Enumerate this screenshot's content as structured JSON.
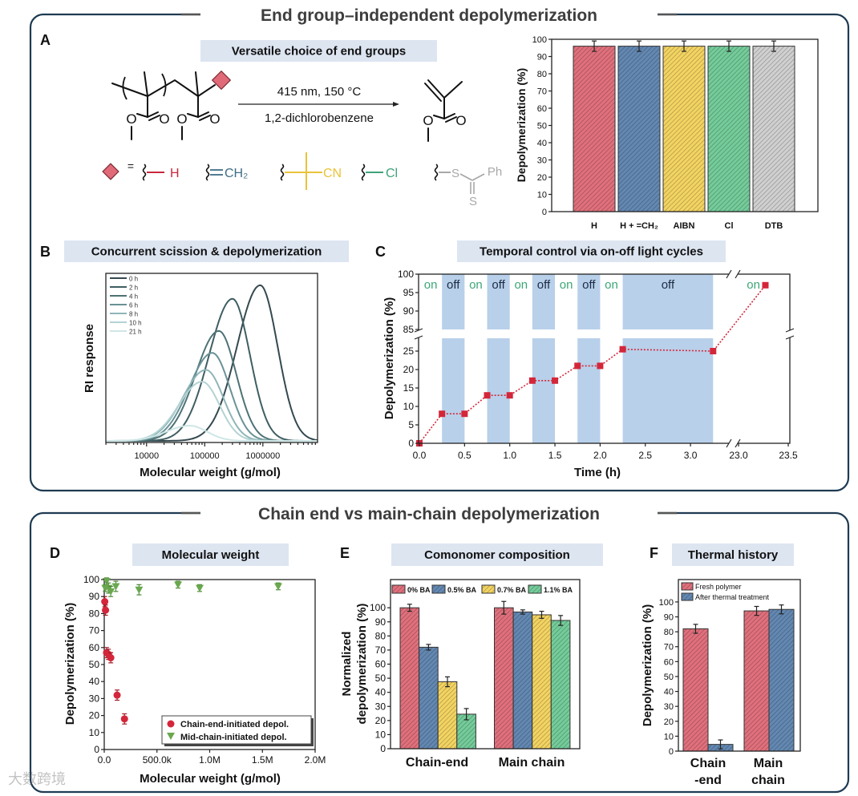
{
  "sections": {
    "top_title": "End group–independent depolymerization",
    "bottom_title": "Chain end vs main-chain depolymerization"
  },
  "panels": {
    "A": {
      "label": "A",
      "title": "Versatile choice of end groups",
      "conditions_top": "415 nm, 150 °C",
      "conditions_bottom": "1,2-dichlorobenzene",
      "atom_O": "O",
      "equals": "=",
      "end_groups": {
        "h": "H",
        "vinyl": "CH₂",
        "aibn": "CN",
        "cl": "Cl",
        "dtb_s1": "S",
        "dtb_ph": "Ph",
        "dtb_s2": "S"
      }
    },
    "B": {
      "label": "B",
      "title": "Concurrent scission & depolymerization"
    },
    "C": {
      "label": "C",
      "title": "Temporal control via on-off light cycles"
    },
    "D": {
      "label": "D",
      "title": "Molecular weight"
    },
    "E": {
      "label": "E",
      "title": "Comonomer composition"
    },
    "F": {
      "label": "F",
      "title": "Thermal history"
    }
  },
  "watermark": "大数跨境",
  "colors": {
    "frame": "#1f3b52",
    "title_box": "#dde5f1",
    "red": "#e0707c",
    "blue": "#6388b2",
    "yellow": "#f3d462",
    "green": "#74cc9a",
    "gray": "#d0d0d0",
    "off_band": "#b8d0ea",
    "on_text": "#3aa776",
    "off_text": "#1c2b45",
    "point_red": "#d4263a",
    "point_green": "#6aa84f",
    "end_h": "#c8283c",
    "end_vinyl": "#3e6e86",
    "end_aibn": "#eac33a",
    "end_cl": "#3ea37a",
    "end_dtb": "#a8a8a8"
  },
  "chart_data": [
    {
      "type": "bar",
      "panel": "A",
      "categories": [
        "H",
        "H + =CH₂",
        "AIBN",
        "Cl",
        "DTB"
      ],
      "values": [
        96,
        96,
        96,
        96,
        96
      ],
      "errors": [
        3,
        3,
        3,
        3,
        3
      ],
      "ylabel": "Depolymerization (%)",
      "xlabel": "",
      "ylim": [
        0,
        100
      ],
      "yticks": [
        0,
        10,
        20,
        30,
        40,
        50,
        60,
        70,
        80,
        90,
        100
      ]
    },
    {
      "type": "line",
      "panel": "B",
      "title": "Concurrent scission & depolymerization",
      "xlabel": "Molecular weight (g/mol)",
      "ylabel": "RI response",
      "xscale": "log",
      "xticks": [
        10000,
        100000,
        1000000
      ],
      "xtick_labels": [
        "10000",
        "100000",
        "1000000"
      ],
      "legend_position": "top-left",
      "series": [
        {
          "name": "0 h",
          "peak_mw": 900000,
          "relative_height": 0.92
        },
        {
          "name": "2 h",
          "peak_mw": 300000,
          "relative_height": 0.84
        },
        {
          "name": "4 h",
          "peak_mw": 175000,
          "relative_height": 0.65
        },
        {
          "name": "6 h",
          "peak_mw": 135000,
          "relative_height": 0.52
        },
        {
          "name": "8 h",
          "peak_mw": 105000,
          "relative_height": 0.42
        },
        {
          "name": "10 h",
          "peak_mw": 90000,
          "relative_height": 0.35
        },
        {
          "name": "21 h",
          "peak_mw": 55000,
          "relative_height": 0.09
        }
      ]
    },
    {
      "type": "line",
      "panel": "C",
      "title": "Temporal control via on-off light cycles",
      "xlabel": "Time (h)",
      "ylabel": "Depolymerization (%)",
      "x": [
        0,
        0.25,
        0.5,
        0.75,
        1.0,
        1.25,
        1.5,
        1.75,
        2.0,
        2.25,
        3.25,
        23.27
      ],
      "y": [
        0,
        8,
        8,
        13,
        13,
        17,
        17,
        21,
        21,
        25.5,
        25,
        97
      ],
      "light_periods": [
        {
          "state": "on",
          "start": 0,
          "end": 0.25
        },
        {
          "state": "off",
          "start": 0.25,
          "end": 0.5
        },
        {
          "state": "on",
          "start": 0.5,
          "end": 0.75
        },
        {
          "state": "off",
          "start": 0.75,
          "end": 1.0
        },
        {
          "state": "on",
          "start": 1.0,
          "end": 1.25
        },
        {
          "state": "off",
          "start": 1.25,
          "end": 1.5
        },
        {
          "state": "on",
          "start": 1.5,
          "end": 1.75
        },
        {
          "state": "off",
          "start": 1.75,
          "end": 2.0
        },
        {
          "state": "on",
          "start": 2.0,
          "end": 2.25
        },
        {
          "state": "off",
          "start": 2.25,
          "end": 3.25
        },
        {
          "state": "on",
          "start": 23.0,
          "end": 23.3
        }
      ],
      "xticks": [
        0,
        0.5,
        1.0,
        1.5,
        2.0,
        2.5,
        3.0,
        23.0,
        23.5
      ],
      "xtick_labels": [
        "0.0",
        "0.5",
        "1.0",
        "1.5",
        "2.0",
        "2.5",
        "3.0",
        "23.0",
        "23.5"
      ],
      "yticks": [
        0,
        5,
        10,
        15,
        20,
        25,
        85,
        90,
        95,
        100
      ],
      "x_break": [
        3.42,
        23.0
      ],
      "y_break": [
        28.5,
        85
      ]
    },
    {
      "type": "scatter",
      "panel": "D",
      "title": "Molecular weight",
      "xlabel": "Molecular weight (g/mol)",
      "ylabel": "Depolymerization (%)",
      "xlim": [
        0,
        2000000
      ],
      "ylim": [
        0,
        100
      ],
      "xticks": [
        0,
        500000,
        1000000,
        1500000,
        2000000
      ],
      "xtick_labels": [
        "0.0",
        "500.0k",
        "1.0M",
        "1.5M",
        "2.0M"
      ],
      "yticks": [
        0,
        10,
        20,
        30,
        40,
        50,
        60,
        70,
        80,
        90,
        100
      ],
      "legend_position": "bottom-right",
      "series": [
        {
          "name": "Chain-end-initiated depol.",
          "marker": "circle",
          "x": [
            5000,
            12000,
            22000,
            40000,
            62000,
            122000,
            192000
          ],
          "y": [
            87,
            82,
            57,
            56,
            54,
            32,
            18
          ],
          "errors": [
            3,
            3,
            3,
            3,
            3,
            3,
            3
          ]
        },
        {
          "name": "Mid-chain-initiated depol.",
          "marker": "triangle-down",
          "x": [
            10000,
            22000,
            40000,
            62000,
            110000,
            330000,
            700000,
            905000,
            1650000
          ],
          "y": [
            95,
            99,
            95,
            93,
            96,
            94,
            97,
            95,
            96
          ],
          "errors": [
            2,
            2,
            3,
            3,
            3,
            3,
            2,
            2,
            2
          ]
        }
      ]
    },
    {
      "type": "bar",
      "panel": "E",
      "title": "Comonomer composition",
      "ylabel_lines": [
        "Normalized",
        "depolymerization (%)"
      ],
      "categories": [
        "Chain-end",
        "Main chain"
      ],
      "ylim": [
        0,
        120
      ],
      "yticks": [
        0,
        10,
        20,
        30,
        40,
        50,
        60,
        70,
        80,
        90,
        100
      ],
      "legend_position": "top",
      "series": [
        {
          "name": "0% BA",
          "values": [
            100,
            100
          ],
          "errors": [
            2.5,
            4.5
          ]
        },
        {
          "name": "0.5% BA",
          "values": [
            72,
            97
          ],
          "errors": [
            2,
            1.5
          ]
        },
        {
          "name": "0.7% BA",
          "values": [
            47.5,
            95
          ],
          "errors": [
            3.5,
            2.5
          ]
        },
        {
          "name": "1.1% BA",
          "values": [
            24.5,
            91
          ],
          "errors": [
            4,
            3.5
          ]
        }
      ]
    },
    {
      "type": "bar",
      "panel": "F",
      "title": "Thermal history",
      "ylabel": "Depolymerization (%)",
      "categories": [
        "Chain -end",
        "Main chain"
      ],
      "category_lines": [
        [
          "Chain",
          "-end"
        ],
        [
          "Main",
          "chain"
        ]
      ],
      "ylim": [
        0,
        115
      ],
      "yticks": [
        0,
        10,
        20,
        30,
        40,
        50,
        60,
        70,
        80,
        90,
        100
      ],
      "legend_position": "top-left",
      "series": [
        {
          "name": "Fresh polymer",
          "values": [
            82,
            94
          ],
          "errors": [
            3,
            3
          ]
        },
        {
          "name": "After thermal treatment",
          "values": [
            4.5,
            95
          ],
          "errors": [
            3,
            3
          ]
        }
      ]
    }
  ]
}
